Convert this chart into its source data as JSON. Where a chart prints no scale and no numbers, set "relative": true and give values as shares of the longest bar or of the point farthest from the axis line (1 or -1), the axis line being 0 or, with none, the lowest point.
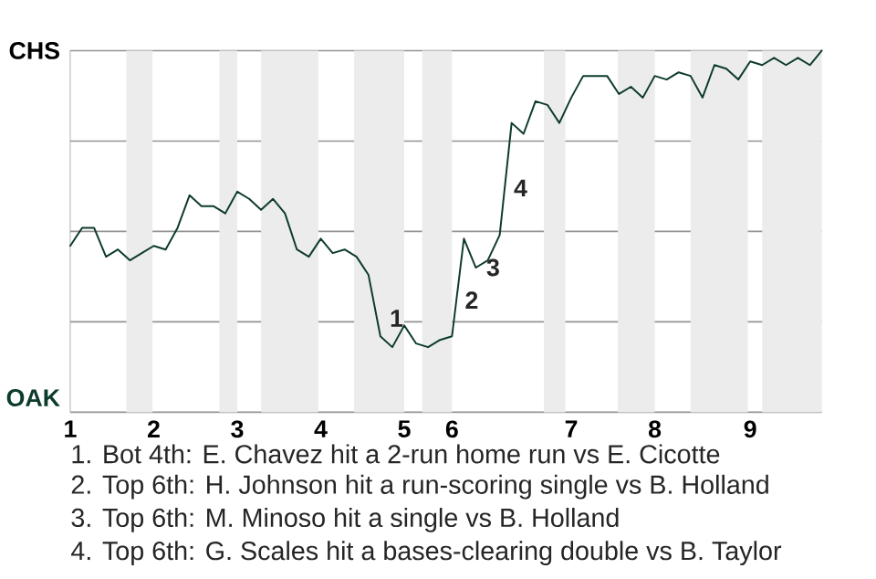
{
  "chart_data": {
    "type": "line",
    "color": "#0d3b2e",
    "relative": true,
    "categories": [
      "1",
      null,
      null,
      null,
      null,
      null,
      null,
      "2",
      null,
      null,
      null,
      null,
      null,
      null,
      "3",
      null,
      null,
      null,
      null,
      null,
      null,
      "4",
      null,
      null,
      null,
      null,
      null,
      null,
      "5",
      null,
      null,
      null,
      "6",
      null,
      null,
      null,
      null,
      null,
      null,
      null,
      null,
      null,
      "7",
      null,
      null,
      null,
      null,
      null,
      null,
      "8",
      null,
      null,
      null,
      null,
      null,
      null,
      null,
      "9",
      null,
      null,
      null,
      null,
      null,
      null
    ],
    "values": [
      0.46,
      0.51,
      0.51,
      0.43,
      0.45,
      0.42,
      0.44,
      0.46,
      0.45,
      0.51,
      0.6,
      0.57,
      0.57,
      0.55,
      0.61,
      0.59,
      0.56,
      0.59,
      0.55,
      0.45,
      0.43,
      0.48,
      0.44,
      0.45,
      0.43,
      0.38,
      0.21,
      0.18,
      0.24,
      0.19,
      0.18,
      0.2,
      0.21,
      0.48,
      0.4,
      0.42,
      0.49,
      0.8,
      0.77,
      0.86,
      0.85,
      0.8,
      0.87,
      0.93,
      0.93,
      0.93,
      0.88,
      0.9,
      0.87,
      0.93,
      0.92,
      0.94,
      0.93,
      0.87,
      0.96,
      0.95,
      0.92,
      0.97,
      0.96,
      0.98,
      0.96,
      0.98,
      0.96,
      1
    ],
    "grid": "y",
    "annotations": [
      "CHS",
      "OAK",
      "1",
      "2",
      "3",
      "4",
      "1. Bot 4th: E. Chavez hit a 2-run home run vs E. Cicotte",
      "2. Top 6th: H. Johnson hit a run-scoring single vs B. Holland",
      "3. Top 6th: M. Minoso hit a single vs B. Holland",
      "4. Top 6th: G. Scales hit a bases-clearing double vs B. Taylor"
    ]
  }
}
